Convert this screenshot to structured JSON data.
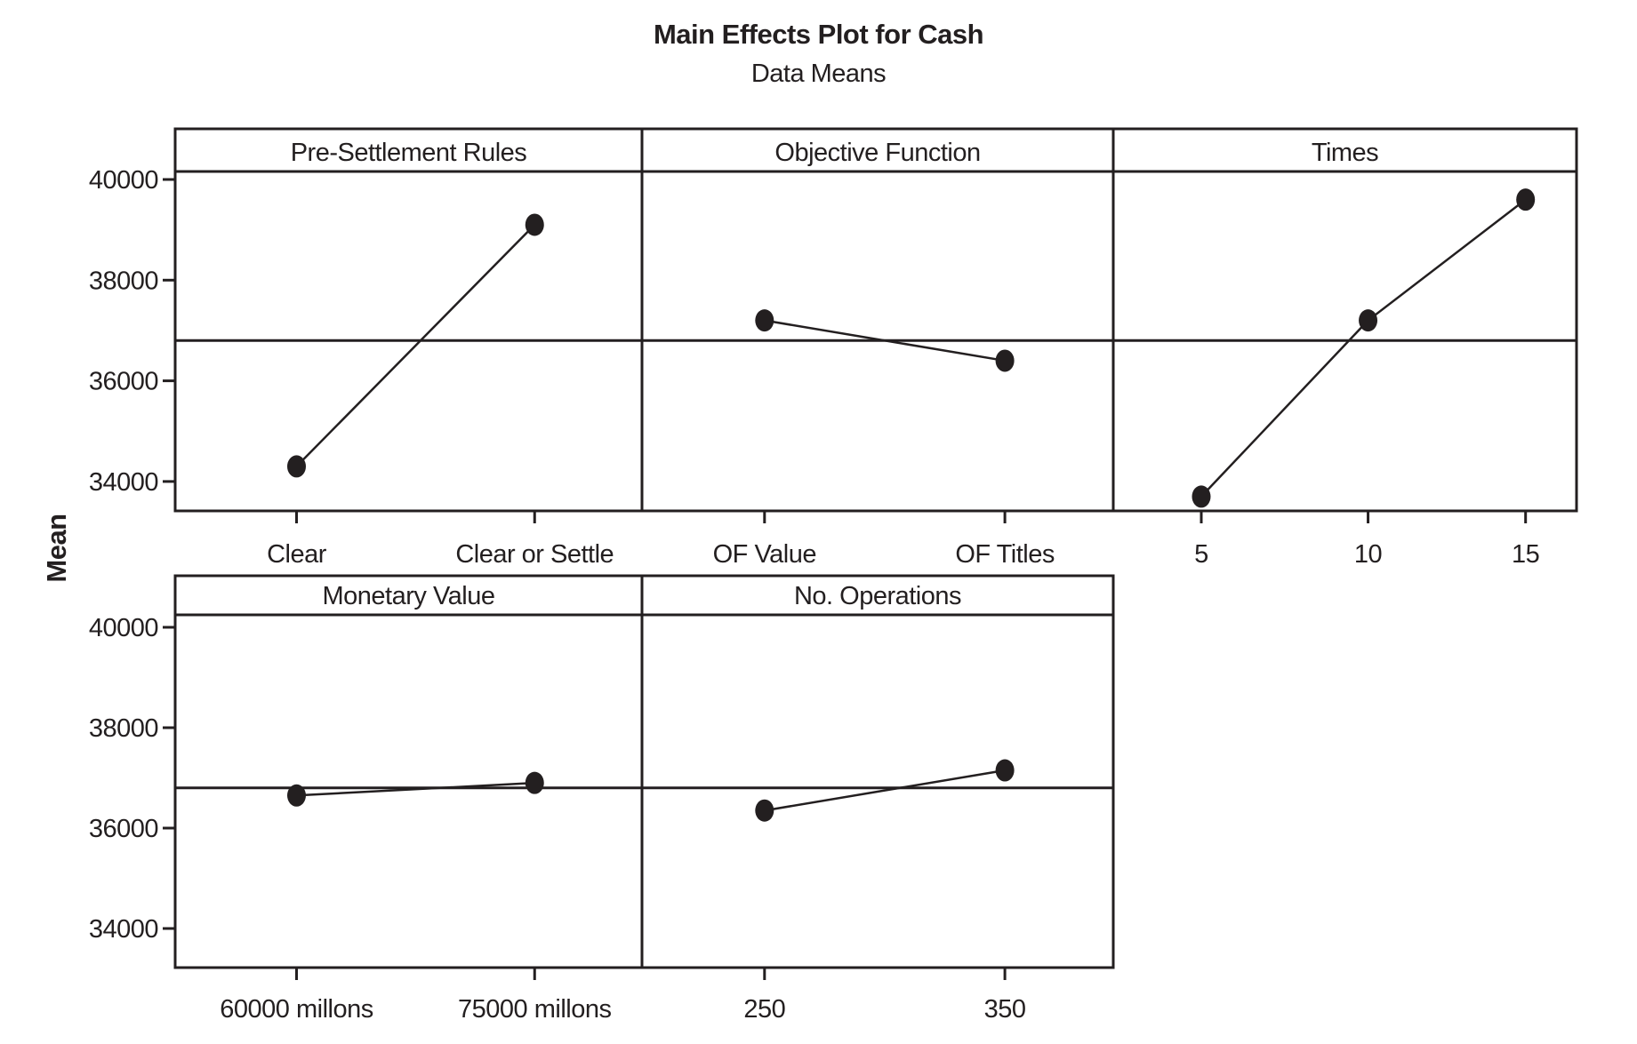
{
  "figure": {
    "title": "Main Effects Plot for Cash",
    "subtitle": "Data Means",
    "y_axis_label": "Mean"
  },
  "chart_data": {
    "type": "line",
    "title": "Main Effects Plot for Cash",
    "subtitle": "Data Means",
    "xlabel": "",
    "ylabel": "Mean",
    "yticks": [
      40000,
      38000,
      36000,
      34000
    ],
    "ylim": [
      33400,
      40200
    ],
    "grand_mean_reference": 36800,
    "grid": false,
    "legend": false,
    "ink_color": "#231f20",
    "panels": [
      {
        "factor": "Pre-Settlement Rules",
        "categories": [
          "Clear",
          "Clear or Settle"
        ],
        "values": [
          34300,
          39100
        ]
      },
      {
        "factor": "Objective Function",
        "categories": [
          "OF Value",
          "OF Titles"
        ],
        "values": [
          37200,
          36400
        ]
      },
      {
        "factor": "Times",
        "categories": [
          "5",
          "10",
          "15"
        ],
        "values": [
          33700,
          37200,
          39600
        ]
      },
      {
        "factor": "Monetary Value",
        "categories": [
          "60000 millons",
          "75000 millons"
        ],
        "values": [
          36650,
          36900
        ]
      },
      {
        "factor": "No. Operations",
        "categories": [
          "250",
          "350"
        ],
        "values": [
          36350,
          37150
        ]
      }
    ],
    "rows": [
      [
        0,
        1,
        2
      ],
      [
        3,
        4
      ]
    ]
  }
}
